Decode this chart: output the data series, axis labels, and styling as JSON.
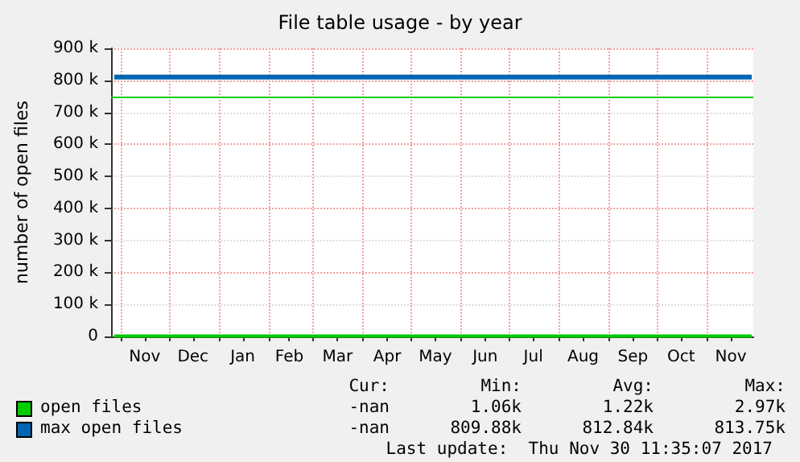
{
  "chart_data": {
    "type": "line",
    "title": "File table usage - by year",
    "ylabel": "number of open files",
    "xlim": [
      "2016-10-26",
      "2017-11-30"
    ],
    "xticks": [
      {
        "value": "2016-11-01",
        "label": null
      },
      {
        "value": "2016-11-16",
        "label": "Nov"
      },
      {
        "value": "2016-12-01",
        "label": null
      },
      {
        "value": "2016-12-16",
        "label": "Dec"
      },
      {
        "value": "2017-01-01",
        "label": null
      },
      {
        "value": "2017-01-16",
        "label": "Jan"
      },
      {
        "value": "2017-02-01",
        "label": null
      },
      {
        "value": "2017-02-14",
        "label": "Feb"
      },
      {
        "value": "2017-03-01",
        "label": null
      },
      {
        "value": "2017-03-16",
        "label": "Mar"
      },
      {
        "value": "2017-04-01",
        "label": null
      },
      {
        "value": "2017-04-16",
        "label": "Apr"
      },
      {
        "value": "2017-05-01",
        "label": null
      },
      {
        "value": "2017-05-16",
        "label": "May"
      },
      {
        "value": "2017-06-01",
        "label": null
      },
      {
        "value": "2017-06-16",
        "label": "Jun"
      },
      {
        "value": "2017-07-01",
        "label": null
      },
      {
        "value": "2017-07-16",
        "label": "Jul"
      },
      {
        "value": "2017-08-01",
        "label": null
      },
      {
        "value": "2017-08-16",
        "label": "Aug"
      },
      {
        "value": "2017-09-01",
        "label": null
      },
      {
        "value": "2017-09-16",
        "label": "Sep"
      },
      {
        "value": "2017-10-01",
        "label": null
      },
      {
        "value": "2017-10-16",
        "label": "Oct"
      },
      {
        "value": "2017-11-01",
        "label": null
      },
      {
        "value": "2017-11-16",
        "label": "Nov"
      }
    ],
    "ylim": [
      0,
      900000
    ],
    "yticks": [
      0,
      {
        "value": 100000,
        "label": "100 k"
      },
      {
        "value": 200000,
        "label": "200 k"
      },
      {
        "value": 300000,
        "label": "300 k"
      },
      {
        "value": 400000,
        "label": "400 k"
      },
      {
        "value": 500000,
        "label": "500 k"
      },
      {
        "value": 600000,
        "label": "600 k"
      },
      {
        "value": 700000,
        "label": "700 k"
      },
      {
        "value": 800000,
        "label": "800 k"
      },
      {
        "value": 900000,
        "label": "900 k"
      }
    ],
    "grid": true,
    "legend": "bottom",
    "marker": "none",
    "line_style": "solid",
    "series": [
      {
        "name": "open files",
        "color": "#00cc00",
        "x": [
          "2016-10-28",
          "2017-11-29"
        ],
        "values": [
          1000,
          1000
        ]
      },
      {
        "name": "max open files",
        "color": "#0066b3",
        "x": [
          "2016-10-28",
          "2017-11-29"
        ],
        "values": [
          810000,
          810000
        ]
      }
    ],
    "ref_lines": [
      {
        "axis": "y",
        "value": 750000,
        "label": null,
        "color": "#00cc00"
      }
    ],
    "annotations": [
      "Cur:",
      "Min:",
      "Avg:",
      "Max:",
      "-nan",
      "1.06k",
      "1.22k",
      "2.97k",
      "-nan",
      "809.88k",
      "812.84k",
      "813.75k",
      "Last update:  Thu Nov 30 11:35:07 2017"
    ]
  }
}
